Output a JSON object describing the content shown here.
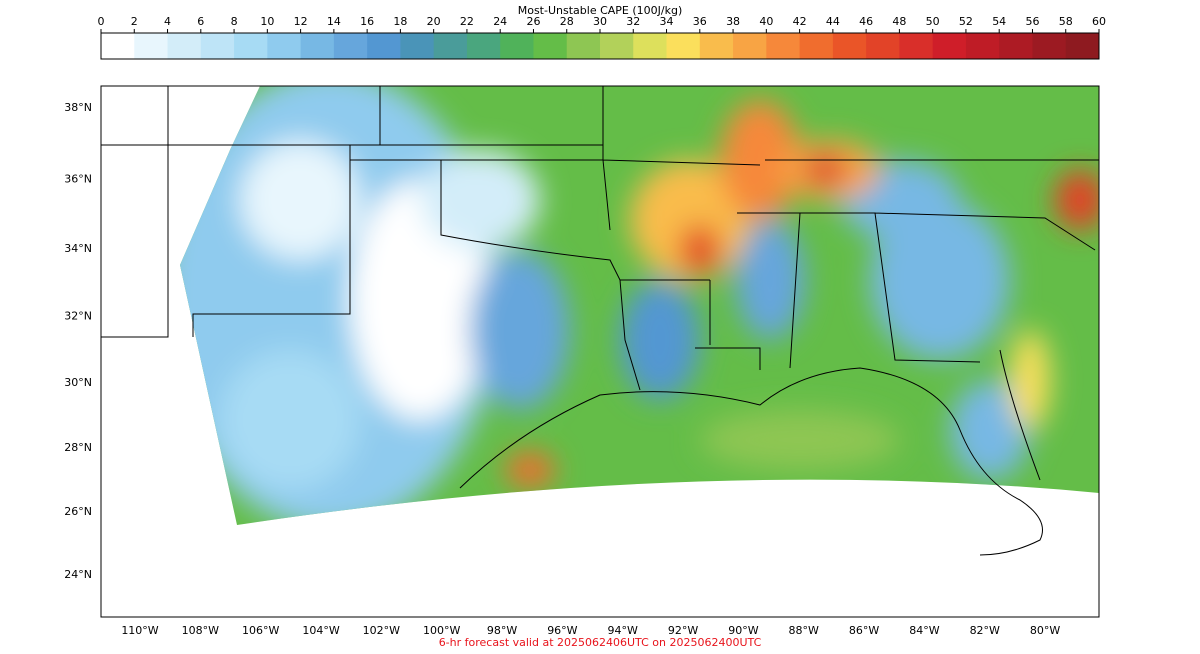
{
  "colorbar": {
    "title": "Most-Unstable CAPE (100J/kg)",
    "range": [
      0,
      60
    ],
    "ticks": [
      0,
      2,
      4,
      6,
      8,
      10,
      12,
      14,
      16,
      18,
      20,
      22,
      24,
      26,
      28,
      30,
      32,
      34,
      36,
      38,
      40,
      42,
      44,
      46,
      48,
      50,
      52,
      54,
      56,
      58,
      60
    ],
    "colors": [
      "#ffffff",
      "#e8f6fd",
      "#d3edf9",
      "#bee4f7",
      "#a7dbf4",
      "#8fcbee",
      "#77b8e4",
      "#66a6dc",
      "#5397d2",
      "#4a94b8",
      "#4a9c9a",
      "#4aa67e",
      "#50b25a",
      "#64bd48",
      "#8ec653",
      "#b2d15a",
      "#dde05c",
      "#fbdf5c",
      "#f9bc4c",
      "#f8a444",
      "#f6883a",
      "#f06d2e",
      "#ea5528",
      "#e24328",
      "#d92f2a",
      "#cf1e29",
      "#bf1c26",
      "#ad1b24",
      "#9c1a22",
      "#8e1a20"
    ]
  },
  "map": {
    "lat_labels": [
      {
        "value": 38,
        "label": "38°N"
      },
      {
        "value": 36,
        "label": "36°N"
      },
      {
        "value": 34,
        "label": "34°N"
      },
      {
        "value": 32,
        "label": "32°N"
      },
      {
        "value": 30,
        "label": "30°N"
      },
      {
        "value": 28,
        "label": "28°N"
      },
      {
        "value": 26,
        "label": "26°N"
      },
      {
        "value": 24,
        "label": "24°N"
      }
    ],
    "lon_labels": [
      {
        "value": -110,
        "label": "110°W"
      },
      {
        "value": -108,
        "label": "108°W"
      },
      {
        "value": -106,
        "label": "106°W"
      },
      {
        "value": -104,
        "label": "104°W"
      },
      {
        "value": -102,
        "label": "102°W"
      },
      {
        "value": -100,
        "label": "100°W"
      },
      {
        "value": -98,
        "label": "98°W"
      },
      {
        "value": -96,
        "label": "96°W"
      },
      {
        "value": -94,
        "label": "94°W"
      },
      {
        "value": -92,
        "label": "92°W"
      },
      {
        "value": -90,
        "label": "90°W"
      },
      {
        "value": -88,
        "label": "88°W"
      },
      {
        "value": -86,
        "label": "86°W"
      },
      {
        "value": -84,
        "label": "84°W"
      },
      {
        "value": -82,
        "label": "82°W"
      },
      {
        "value": -80,
        "label": "80°W"
      }
    ]
  },
  "caption": "6-hr forecast valid at 2025062406UTC on 2025062400UTC"
}
